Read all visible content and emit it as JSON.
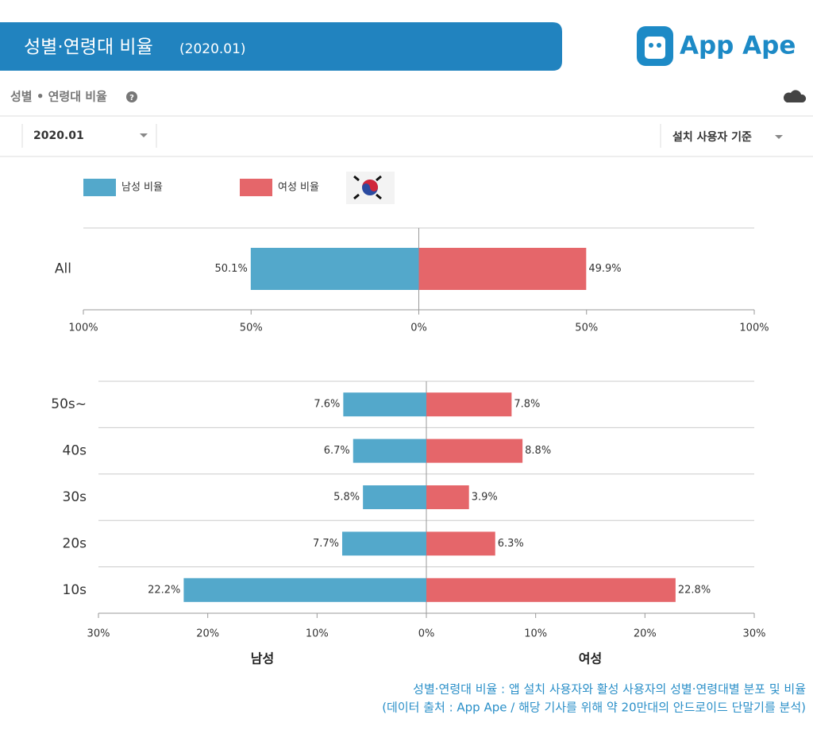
{
  "header": {
    "title": "성별·연령대 비율",
    "date": "(2020.01)",
    "logo": "App Ape"
  },
  "section": {
    "title": "성별 • 연령대 비율"
  },
  "toolbar": {
    "period": "2020.01",
    "basis": "설치 사용자 기준"
  },
  "chart_data": [
    {
      "type": "diverging_bar",
      "categories": [
        "All"
      ],
      "series": [
        {
          "name": "남성 비율",
          "color": "#53a8cb",
          "values": [
            50.1
          ],
          "value_labels": [
            "50.1%"
          ]
        },
        {
          "name": "여성 비율",
          "color": "#e5666a",
          "values": [
            49.9
          ],
          "value_labels": [
            "49.9%"
          ]
        }
      ],
      "xlim": [
        -100,
        100
      ],
      "xticks": [
        {
          "value": -100,
          "label": "100%"
        },
        {
          "value": -50,
          "label": "50%"
        },
        {
          "value": 0,
          "label": "0%"
        },
        {
          "value": 50,
          "label": "50%"
        },
        {
          "value": 100,
          "label": "100%"
        }
      ],
      "legend": true
    },
    {
      "type": "diverging_bar",
      "categories": [
        "50s~",
        "40s",
        "30s",
        "20s",
        "10s"
      ],
      "series": [
        {
          "name": "남성",
          "color": "#53a8cb",
          "values": [
            7.6,
            6.7,
            5.8,
            7.7,
            22.2
          ],
          "value_labels": [
            "7.6%",
            "6.7%",
            "5.8%",
            "7.7%",
            "22.2%"
          ]
        },
        {
          "name": "여성",
          "color": "#e5666a",
          "values": [
            7.8,
            8.8,
            3.9,
            6.3,
            22.8
          ],
          "value_labels": [
            "7.8%",
            "8.8%",
            "3.9%",
            "6.3%",
            "22.8%"
          ]
        }
      ],
      "xlim": [
        -30,
        30
      ],
      "xticks": [
        {
          "value": -30,
          "label": "30%"
        },
        {
          "value": -20,
          "label": "20%"
        },
        {
          "value": -10,
          "label": "10%"
        },
        {
          "value": 0,
          "label": "0%"
        },
        {
          "value": 10,
          "label": "10%"
        },
        {
          "value": 20,
          "label": "20%"
        },
        {
          "value": 30,
          "label": "30%"
        }
      ],
      "legend": false
    }
  ],
  "footnote": [
    "성별·연령대 비율 : 앱 설치 사용자와 활성 사용자의 성별·연령대별 분포 및 비율",
    "(데이터 출처 : App Ape / 해당 기사를 위해 약 20만대의 안드로이드 단말기를 분석)"
  ]
}
